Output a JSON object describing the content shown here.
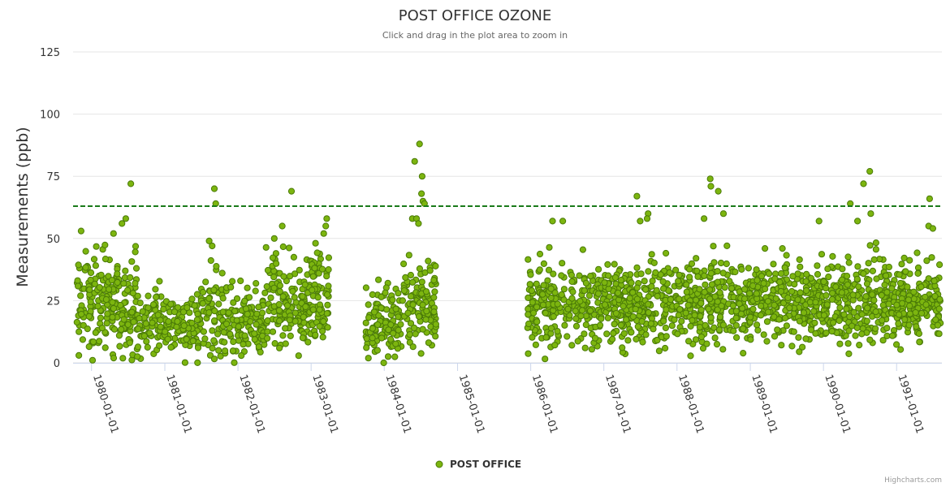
{
  "chart_data": {
    "type": "scatter",
    "title": "POST OFFICE OZONE",
    "subtitle": "Click and drag in the plot area to zoom in",
    "ylabel": "Measurements (ppb)",
    "xlabel": "",
    "ylim": [
      0,
      125
    ],
    "y_ticks": [
      "0",
      "25",
      "50",
      "75",
      "100",
      "125"
    ],
    "x_range": [
      "1979-10-01",
      "1991-08-15"
    ],
    "x_ticks": [
      "1980-01-01",
      "1981-01-01",
      "1982-01-01",
      "1983-01-01",
      "1984-01-01",
      "1985-01-01",
      "1986-01-01",
      "1987-01-01",
      "1988-01-01",
      "1989-01-01",
      "1990-01-01",
      "1991-01-01"
    ],
    "grid": true,
    "legend_position": "bottom-center",
    "threshold": {
      "value": 63,
      "color": "#1a7a1a",
      "style": "dashed"
    },
    "series": [
      {
        "name": "POST OFFICE",
        "color": "#7cb50f",
        "border_color": "#4a7a08",
        "points": [
          [
            "1979-11-10",
            53
          ],
          [
            "1980-07-15",
            72
          ],
          [
            "1980-06-20",
            58
          ],
          [
            "1980-06-01",
            56
          ],
          [
            "1980-04-20",
            52
          ],
          [
            "1981-09-05",
            70
          ],
          [
            "1981-09-12",
            64
          ],
          [
            "1981-08-10",
            49
          ],
          [
            "1981-08-25",
            47
          ],
          [
            "1982-09-25",
            69
          ],
          [
            "1982-08-10",
            55
          ],
          [
            "1982-07-01",
            50
          ],
          [
            "1983-03-20",
            58
          ],
          [
            "1983-03-15",
            55
          ],
          [
            "1983-03-05",
            52
          ],
          [
            "1984-06-01",
            81
          ],
          [
            "1984-06-25",
            88
          ],
          [
            "1984-07-08",
            75
          ],
          [
            "1984-07-05",
            68
          ],
          [
            "1984-07-12",
            65
          ],
          [
            "1984-07-20",
            64
          ],
          [
            "1984-05-20",
            58
          ],
          [
            "1984-06-10",
            58
          ],
          [
            "1984-06-20",
            56
          ],
          [
            "1988-06-15",
            74
          ],
          [
            "1988-06-18",
            71
          ],
          [
            "1988-07-25",
            69
          ],
          [
            "1988-08-20",
            60
          ],
          [
            "1988-05-15",
            58
          ],
          [
            "1987-06-15",
            67
          ],
          [
            "1987-08-10",
            60
          ],
          [
            "1987-08-05",
            58
          ],
          [
            "1987-07-01",
            57
          ],
          [
            "1990-05-15",
            64
          ],
          [
            "1990-07-20",
            72
          ],
          [
            "1990-08-20",
            77
          ],
          [
            "1990-08-25",
            60
          ],
          [
            "1990-06-20",
            57
          ],
          [
            "1991-06-15",
            66
          ],
          [
            "1991-06-10",
            55
          ],
          [
            "1991-07-01",
            54
          ],
          [
            "1986-04-20",
            57
          ],
          [
            "1986-06-10",
            57
          ],
          [
            "1989-06-10",
            46
          ],
          [
            "1989-03-15",
            46
          ],
          [
            "1989-12-10",
            57
          ]
        ]
      }
    ],
    "segments": [
      {
        "start": "1979-10-20",
        "end": "1980-08-15",
        "center": 24,
        "spread": 11,
        "count": 200
      },
      {
        "start": "1980-08-15",
        "end": "1981-07-01",
        "center": 16,
        "spread": 7,
        "count": 180
      },
      {
        "start": "1981-07-01",
        "end": "1981-10-15",
        "center": 21,
        "spread": 10,
        "count": 60
      },
      {
        "start": "1981-10-15",
        "end": "1982-05-15",
        "center": 15,
        "spread": 8,
        "count": 130
      },
      {
        "start": "1982-05-15",
        "end": "1982-12-31",
        "center": 24,
        "spread": 10,
        "count": 150
      },
      {
        "start": "1982-12-31",
        "end": "1983-03-31",
        "center": 28,
        "spread": 10,
        "count": 70
      },
      {
        "start": "1983-10-01",
        "end": "1984-04-01",
        "center": 17,
        "spread": 8,
        "count": 110
      },
      {
        "start": "1984-04-01",
        "end": "1984-09-15",
        "center": 24,
        "spread": 11,
        "count": 110
      },
      {
        "start": "1985-12-15",
        "end": "1986-12-31",
        "center": 23,
        "spread": 9,
        "count": 230
      },
      {
        "start": "1986-12-31",
        "end": "1987-12-31",
        "center": 24,
        "spread": 9,
        "count": 260
      },
      {
        "start": "1987-12-31",
        "end": "1988-12-31",
        "center": 24,
        "spread": 9,
        "count": 260
      },
      {
        "start": "1988-12-31",
        "end": "1989-12-31",
        "center": 25,
        "spread": 9,
        "count": 260
      },
      {
        "start": "1989-12-31",
        "end": "1990-12-31",
        "center": 25,
        "spread": 9,
        "count": 260
      },
      {
        "start": "1990-12-31",
        "end": "1991-08-10",
        "center": 24,
        "spread": 9,
        "count": 180
      }
    ]
  },
  "credits": "Highcharts.com"
}
